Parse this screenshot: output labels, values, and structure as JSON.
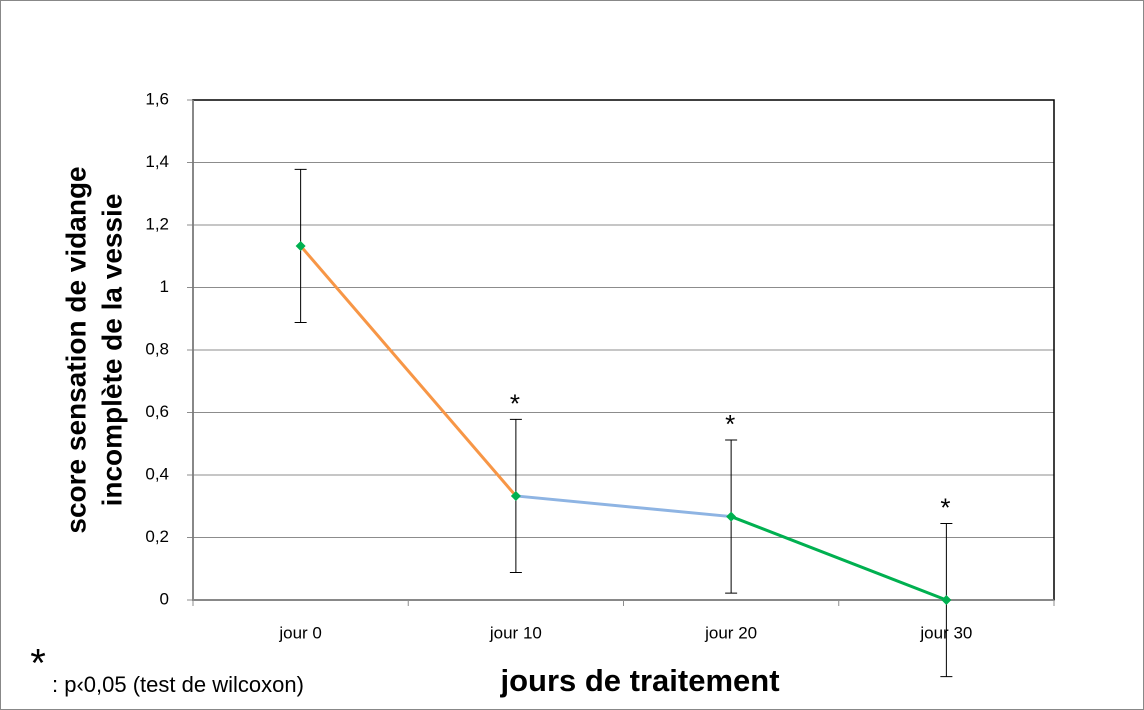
{
  "chart_data": {
    "type": "line",
    "y_label": [
      "score sensation de vidange",
      "incomplète de la vessie"
    ],
    "x_label": "jours de traitement",
    "categories": [
      "jour 0",
      "jour 10",
      "jour 20",
      "jour 30"
    ],
    "values": [
      1.133,
      0.333,
      0.267,
      0
    ],
    "errors": [
      0.245,
      0.245,
      0.245,
      0.245
    ],
    "segment_colors": [
      "#f79646",
      "#8eb4e3",
      "#00b050"
    ],
    "marker_color": "#00b050",
    "significance": [
      null,
      "*",
      "*",
      "*"
    ],
    "footnote_symbol": "*",
    "footnote": ": p‹0,05 (test de wilcoxon)",
    "ylim": [
      0,
      1.6
    ],
    "yticks": [
      0,
      {
        "value": 0.2,
        "label": "0,2"
      },
      {
        "value": 0.4,
        "label": "0,4"
      },
      {
        "value": 0.6,
        "label": "0,6"
      },
      {
        "value": 0.8,
        "label": "0,8"
      },
      1,
      {
        "value": 1.2,
        "label": "1,2"
      },
      {
        "value": 1.4,
        "label": "1,4"
      },
      {
        "value": 1.6,
        "label": "1,6"
      }
    ],
    "grid": true
  }
}
